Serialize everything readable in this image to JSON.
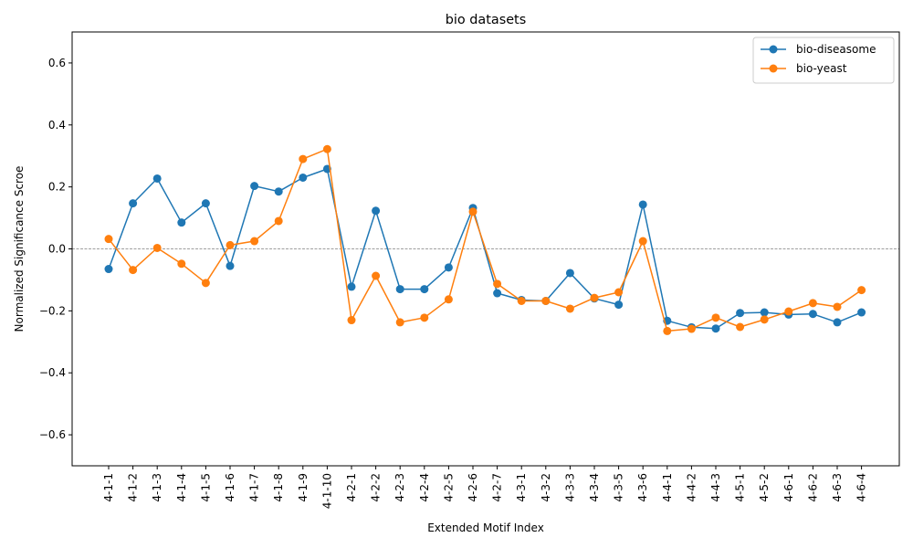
{
  "chart_data": {
    "type": "line",
    "title": "bio datasets",
    "xlabel": "Extended Motif Index",
    "ylabel": "Normalized Significance Scroe",
    "ylim": [
      -0.7,
      0.7
    ],
    "yticks": [
      -0.6,
      -0.4,
      -0.2,
      0.0,
      0.2,
      0.4,
      0.6
    ],
    "ytick_labels": [
      "−0.6",
      "−0.4",
      "−0.2",
      "0.0",
      "0.2",
      "0.4",
      "0.6"
    ],
    "reference_line": 0.0,
    "grid": false,
    "legend_position": "top-right",
    "categories": [
      "4-1-1",
      "4-1-2",
      "4-1-3",
      "4-1-4",
      "4-1-5",
      "4-1-6",
      "4-1-7",
      "4-1-8",
      "4-1-9",
      "4-1-10",
      "4-2-1",
      "4-2-2",
      "4-2-3",
      "4-2-4",
      "4-2-5",
      "4-2-6",
      "4-2-7",
      "4-3-1",
      "4-3-2",
      "4-3-3",
      "4-3-4",
      "4-3-5",
      "4-3-6",
      "4-4-1",
      "4-4-2",
      "4-4-3",
      "4-5-1",
      "4-5-2",
      "4-6-1",
      "4-6-2",
      "4-6-3",
      "4-6-4"
    ],
    "series": [
      {
        "name": "bio-diseasome",
        "color": "#1f77b4",
        "values": [
          -0.065,
          0.147,
          0.227,
          0.085,
          0.147,
          -0.055,
          0.203,
          0.185,
          0.23,
          0.258,
          -0.122,
          0.123,
          -0.13,
          -0.13,
          -0.06,
          0.132,
          -0.143,
          -0.165,
          -0.168,
          -0.078,
          -0.16,
          -0.18,
          0.143,
          -0.232,
          -0.253,
          -0.257,
          -0.207,
          -0.205,
          -0.212,
          -0.21,
          -0.237,
          -0.205
        ]
      },
      {
        "name": "bio-yeast",
        "color": "#ff7f0e",
        "values": [
          0.032,
          -0.068,
          0.003,
          -0.048,
          -0.11,
          0.012,
          0.025,
          0.09,
          0.29,
          0.322,
          -0.23,
          -0.087,
          -0.237,
          -0.222,
          -0.163,
          0.12,
          -0.113,
          -0.168,
          -0.168,
          -0.193,
          -0.158,
          -0.14,
          0.025,
          -0.265,
          -0.258,
          -0.222,
          -0.252,
          -0.228,
          -0.202,
          -0.175,
          -0.187,
          -0.133
        ]
      }
    ]
  }
}
